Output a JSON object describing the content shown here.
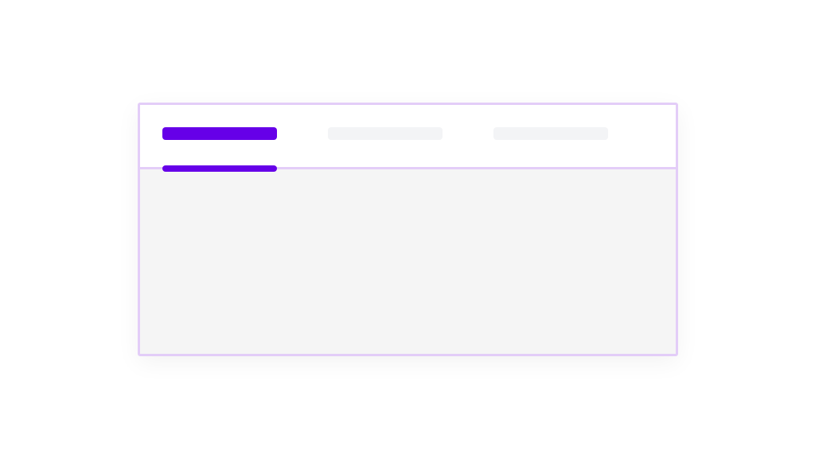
{
  "colors": {
    "accent": "#6600e8",
    "border": "#e3cdf8",
    "inactive_tab": "#f3f4f6",
    "panel": "#f5f5f5"
  },
  "tabs": [
    {
      "state": "active"
    },
    {
      "state": "inactive"
    },
    {
      "state": "inactive"
    }
  ],
  "selected_tab_index": 0
}
